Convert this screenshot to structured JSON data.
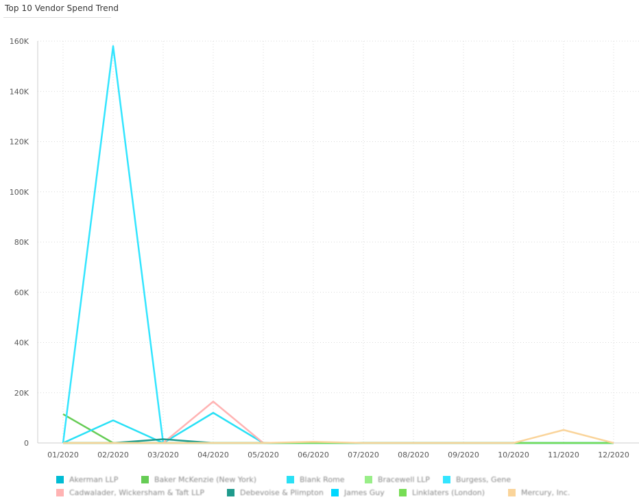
{
  "title": "Top 10 Vendor Spend Trend",
  "chart_data": {
    "type": "line",
    "categories": [
      "01/2020",
      "02/2020",
      "03/2020",
      "04/2020",
      "05/2020",
      "06/2020",
      "07/2020",
      "08/2020",
      "09/2020",
      "10/2020",
      "11/2020",
      "12/2020"
    ],
    "y_ticks": [
      "0",
      "20K",
      "40K",
      "60K",
      "80K",
      "100K",
      "120K",
      "140K",
      "160K"
    ],
    "ylim": [
      0,
      160000
    ],
    "grid": true,
    "legend_position": "bottom",
    "series": [
      {
        "name": "Akerman LLP",
        "color": "#00BCD4",
        "values": [
          0,
          0,
          0,
          0,
          0,
          0,
          0,
          0,
          0,
          0,
          0,
          0
        ]
      },
      {
        "name": "Baker McKenzie (New York)",
        "color": "#66CC55",
        "values": [
          11500,
          0,
          0,
          0,
          0,
          0,
          0,
          0,
          0,
          0,
          0,
          0
        ]
      },
      {
        "name": "Blank Rome",
        "color": "#29E0F5",
        "values": [
          0,
          9000,
          0,
          12000,
          0,
          0,
          0,
          0,
          0,
          0,
          0,
          0
        ]
      },
      {
        "name": "Bracewell LLP",
        "color": "#99EE88",
        "values": [
          0,
          0,
          0,
          0,
          0,
          0,
          0,
          0,
          0,
          0,
          0,
          0
        ]
      },
      {
        "name": "Burgess, Gene",
        "color": "#33E5FF",
        "values": [
          0,
          158000,
          0,
          0,
          0,
          0,
          0,
          0,
          0,
          0,
          0,
          0
        ]
      },
      {
        "name": "Cadwalader, Wickersham & Taft LLP",
        "color": "#FFB3B3",
        "values": [
          0,
          0,
          0,
          16500,
          0,
          0,
          0,
          0,
          0,
          0,
          0,
          0
        ]
      },
      {
        "name": "Debevoise & Plimpton",
        "color": "#1F9A8C",
        "values": [
          0,
          0,
          1500,
          0,
          0,
          0,
          0,
          0,
          0,
          0,
          0,
          0
        ]
      },
      {
        "name": "James Guy",
        "color": "#00D8FF",
        "values": [
          0,
          0,
          0,
          0,
          0,
          0,
          0,
          0,
          0,
          0,
          0,
          0
        ]
      },
      {
        "name": "Linklaters (London)",
        "color": "#77DD55",
        "values": [
          0,
          0,
          0,
          0,
          0,
          0,
          0,
          0,
          0,
          0,
          0,
          0
        ]
      },
      {
        "name": "Mercury, Inc.",
        "color": "#FAD49A",
        "values": [
          0,
          0,
          0,
          0,
          0,
          500,
          0,
          0,
          0,
          0,
          5200,
          0
        ]
      }
    ]
  }
}
